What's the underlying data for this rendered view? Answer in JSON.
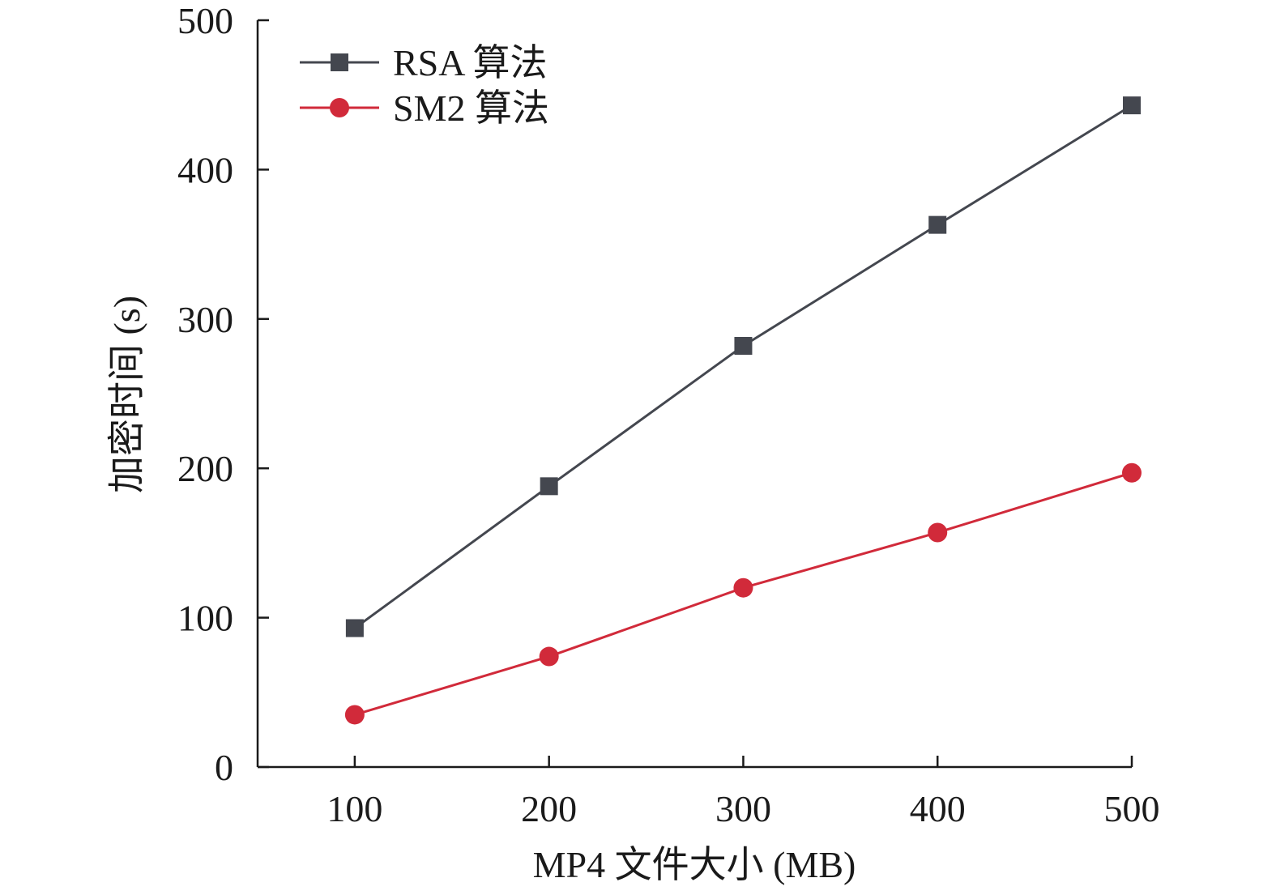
{
  "chart_data": {
    "type": "line",
    "title": "",
    "xlabel": "MP4 文件大小 (MB)",
    "ylabel": "加密时间 (s)",
    "x": [
      100,
      200,
      300,
      400,
      500
    ],
    "xlim": [
      50,
      500
    ],
    "ylim": [
      0,
      500
    ],
    "xticks": [
      100,
      200,
      300,
      400,
      500
    ],
    "yticks": [
      0,
      100,
      200,
      300,
      400,
      500
    ],
    "grid": false,
    "legend_position": "top-left",
    "series": [
      {
        "name": "RSA 算法",
        "marker": "square",
        "color": "#44474f",
        "values": [
          93,
          188,
          282,
          363,
          443
        ]
      },
      {
        "name": "SM2 算法",
        "marker": "circle",
        "color": "#d12a3a",
        "values": [
          35,
          74,
          120,
          157,
          197
        ]
      }
    ]
  }
}
